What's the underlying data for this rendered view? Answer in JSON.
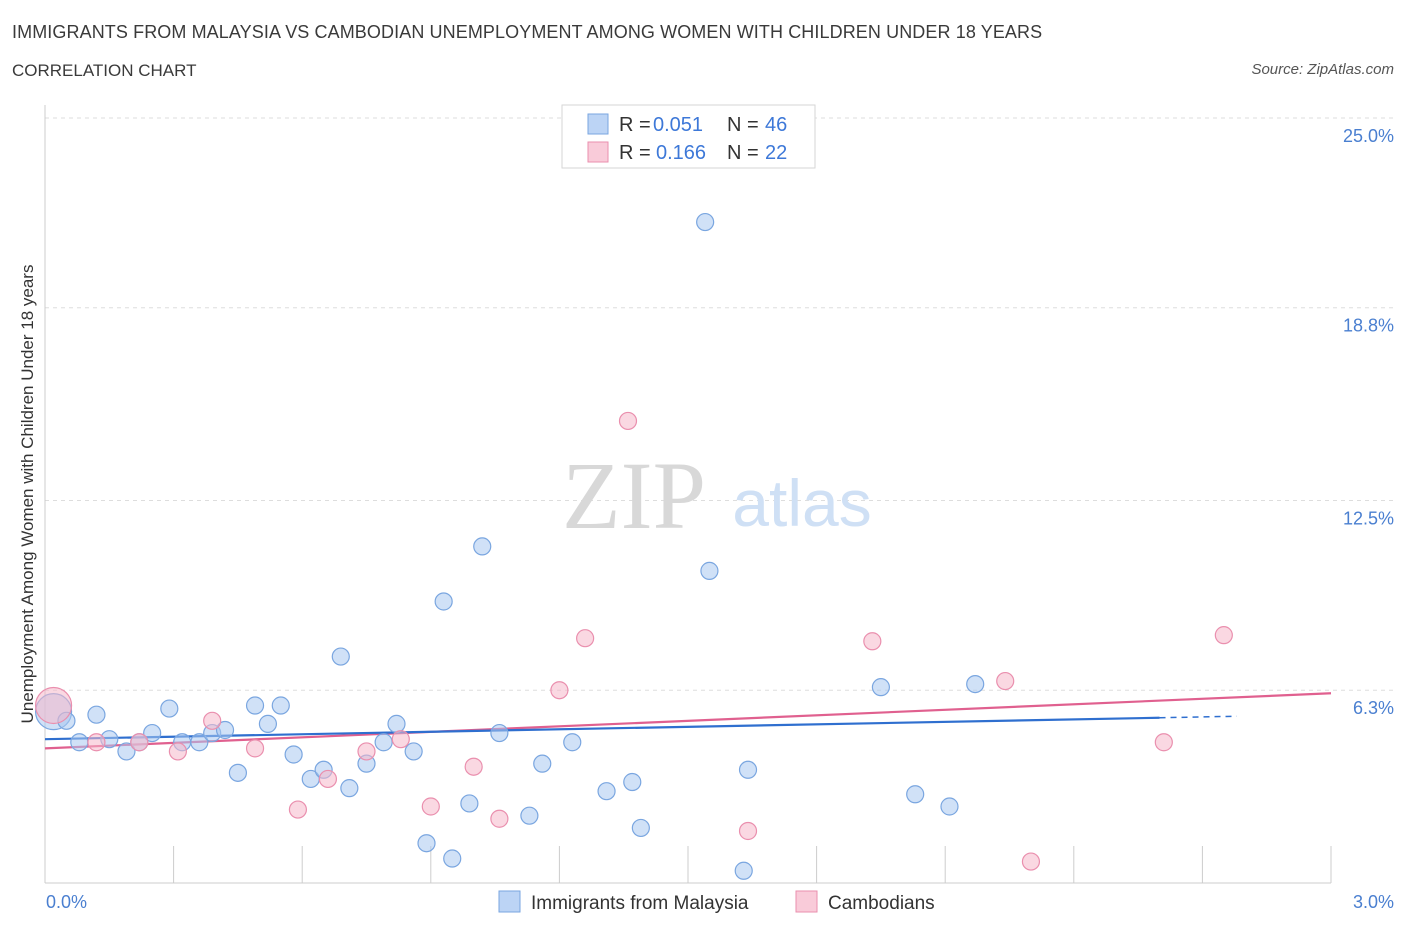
{
  "header": {
    "title": "IMMIGRANTS FROM MALAYSIA VS CAMBODIAN UNEMPLOYMENT AMONG WOMEN WITH CHILDREN UNDER 18 YEARS",
    "subtitle": "CORRELATION CHART",
    "source": "Source: ZipAtlas.com"
  },
  "watermark": {
    "zip": "ZIP",
    "atlas": "atlas"
  },
  "legend": {
    "r_label": "R =",
    "n_label": "N =",
    "rows": [
      {
        "r": "0.051",
        "n": "46"
      },
      {
        "r": "0.166",
        "n": "22"
      }
    ]
  },
  "colors": {
    "blue_fill": "#aac8f0",
    "blue_stroke": "#7aa6e0",
    "blue_line": "#2f6fcf",
    "pink_fill": "#f6b8cb",
    "pink_stroke": "#ea8fae",
    "pink_line": "#e0608f",
    "tick_text": "#4a7fd0",
    "grid": "#dddddd"
  },
  "chart_data": {
    "type": "scatter",
    "title": "IMMIGRANTS FROM MALAYSIA VS CAMBODIAN UNEMPLOYMENT AMONG WOMEN WITH CHILDREN UNDER 18 YEARS",
    "xlabel": "",
    "ylabel": "Unemployment Among Women with Children Under 18 years",
    "xlim": [
      0,
      3.0
    ],
    "ylim": [
      0,
      25.0
    ],
    "x_tick_labels": [
      "0.0%",
      "3.0%"
    ],
    "y_ticks": [
      6.3,
      12.5,
      18.8,
      25.0
    ],
    "y_tick_labels": [
      "6.3%",
      "12.5%",
      "18.8%",
      "25.0%"
    ],
    "grid": true,
    "legend_position": "top-center",
    "series": [
      {
        "name": "Immigrants from Malaysia",
        "r": 0.051,
        "n": 46,
        "trend": {
          "x0": 0.0,
          "y0": 4.7,
          "x1": 2.6,
          "y1": 5.4,
          "dash_to": 2.78,
          "dash_y": 5.45
        },
        "points": [
          {
            "x": 0.02,
            "y": 5.6,
            "big": true
          },
          {
            "x": 0.05,
            "y": 5.3
          },
          {
            "x": 0.08,
            "y": 4.6
          },
          {
            "x": 0.12,
            "y": 5.5
          },
          {
            "x": 0.15,
            "y": 4.7
          },
          {
            "x": 0.19,
            "y": 4.3
          },
          {
            "x": 0.22,
            "y": 4.6
          },
          {
            "x": 0.25,
            "y": 4.9
          },
          {
            "x": 0.29,
            "y": 5.7
          },
          {
            "x": 0.32,
            "y": 4.6
          },
          {
            "x": 0.36,
            "y": 4.6
          },
          {
            "x": 0.39,
            "y": 4.9
          },
          {
            "x": 0.42,
            "y": 5.0
          },
          {
            "x": 0.45,
            "y": 3.6
          },
          {
            "x": 0.49,
            "y": 5.8
          },
          {
            "x": 0.52,
            "y": 5.2
          },
          {
            "x": 0.55,
            "y": 5.8
          },
          {
            "x": 0.58,
            "y": 4.2
          },
          {
            "x": 0.62,
            "y": 3.4
          },
          {
            "x": 0.65,
            "y": 3.7
          },
          {
            "x": 0.69,
            "y": 7.4
          },
          {
            "x": 0.71,
            "y": 3.1
          },
          {
            "x": 0.75,
            "y": 3.9
          },
          {
            "x": 0.79,
            "y": 4.6
          },
          {
            "x": 0.82,
            "y": 5.2
          },
          {
            "x": 0.86,
            "y": 4.3
          },
          {
            "x": 0.89,
            "y": 1.3
          },
          {
            "x": 0.93,
            "y": 9.2
          },
          {
            "x": 0.95,
            "y": 0.8
          },
          {
            "x": 0.99,
            "y": 2.6
          },
          {
            "x": 1.02,
            "y": 11.0
          },
          {
            "x": 1.06,
            "y": 4.9
          },
          {
            "x": 1.13,
            "y": 2.2
          },
          {
            "x": 1.16,
            "y": 3.9
          },
          {
            "x": 1.23,
            "y": 4.6
          },
          {
            "x": 1.31,
            "y": 3.0
          },
          {
            "x": 1.37,
            "y": 3.3
          },
          {
            "x": 1.39,
            "y": 1.8
          },
          {
            "x": 1.54,
            "y": 21.6
          },
          {
            "x": 1.55,
            "y": 10.2
          },
          {
            "x": 1.63,
            "y": 0.4
          },
          {
            "x": 1.64,
            "y": 3.7
          },
          {
            "x": 1.95,
            "y": 6.4
          },
          {
            "x": 2.03,
            "y": 2.9
          },
          {
            "x": 2.11,
            "y": 2.5
          },
          {
            "x": 2.17,
            "y": 6.5
          }
        ]
      },
      {
        "name": "Cambodians",
        "r": 0.166,
        "n": 22,
        "trend": {
          "x0": 0.0,
          "y0": 4.4,
          "x1": 3.0,
          "y1": 6.2
        },
        "points": [
          {
            "x": 0.02,
            "y": 5.8,
            "big": true
          },
          {
            "x": 0.12,
            "y": 4.6
          },
          {
            "x": 0.22,
            "y": 4.6
          },
          {
            "x": 0.31,
            "y": 4.3
          },
          {
            "x": 0.39,
            "y": 5.3
          },
          {
            "x": 0.49,
            "y": 4.4
          },
          {
            "x": 0.59,
            "y": 2.4
          },
          {
            "x": 0.66,
            "y": 3.4
          },
          {
            "x": 0.75,
            "y": 4.3
          },
          {
            "x": 0.83,
            "y": 4.7
          },
          {
            "x": 0.9,
            "y": 2.5
          },
          {
            "x": 1.0,
            "y": 3.8
          },
          {
            "x": 1.06,
            "y": 2.1
          },
          {
            "x": 1.2,
            "y": 6.3
          },
          {
            "x": 1.26,
            "y": 8.0
          },
          {
            "x": 1.36,
            "y": 15.1
          },
          {
            "x": 1.64,
            "y": 1.7
          },
          {
            "x": 1.93,
            "y": 7.9
          },
          {
            "x": 2.24,
            "y": 6.6
          },
          {
            "x": 2.3,
            "y": 0.7
          },
          {
            "x": 2.61,
            "y": 4.6
          },
          {
            "x": 2.75,
            "y": 8.1
          }
        ]
      }
    ]
  }
}
